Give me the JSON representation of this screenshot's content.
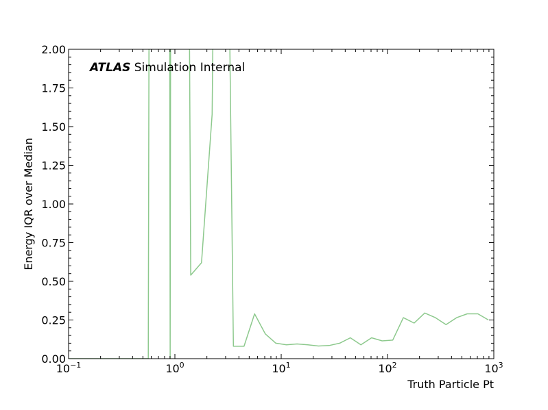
{
  "chart_data": {
    "type": "line",
    "xscale": "log",
    "xlim": [
      0.1,
      1000
    ],
    "ylim": [
      0,
      2.0
    ],
    "xlabel": "Truth Particle Pt",
    "ylabel": "Energy IQR over Median",
    "label_bold": "ATLAS",
    "label_rest": " Simulation Internal",
    "x_ticks": [
      {
        "base": "10",
        "exp": "−1",
        "value": 0.1
      },
      {
        "base": "10",
        "exp": "0",
        "value": 1
      },
      {
        "base": "10",
        "exp": "1",
        "value": 10
      },
      {
        "base": "10",
        "exp": "2",
        "value": 100
      },
      {
        "base": "10",
        "exp": "3",
        "value": 1000
      }
    ],
    "y_ticks": [
      "0.00",
      "0.25",
      "0.50",
      "0.75",
      "1.00",
      "1.25",
      "1.50",
      "1.75",
      "2.00"
    ],
    "series": [
      {
        "color": "#8dc98d",
        "x": [
          0.1,
          0.126,
          0.158,
          0.2,
          0.251,
          0.316,
          0.398,
          0.501,
          0.562,
          0.575,
          0.89,
          0.902,
          0.915,
          1.35,
          1.41,
          1.78,
          2.24,
          2.35,
          3.16,
          3.55,
          4.47,
          5.62,
          7.08,
          8.91,
          11.2,
          14.1,
          17.8,
          22.4,
          28.2,
          35.5,
          44.7,
          56.2,
          70.8,
          89.1,
          112,
          141,
          178,
          224,
          282,
          355,
          447,
          562,
          708,
          891
        ],
        "y": [
          0.0,
          0.0,
          0.0,
          0.0,
          0.0,
          0.0,
          0.0,
          0.0,
          0.0,
          3.0,
          3.0,
          0.0,
          3.0,
          3.0,
          0.54,
          0.62,
          1.58,
          3.0,
          3.0,
          0.08,
          0.08,
          0.29,
          0.16,
          0.1,
          0.09,
          0.095,
          0.09,
          0.082,
          0.085,
          0.1,
          0.135,
          0.09,
          0.135,
          0.115,
          0.12,
          0.265,
          0.23,
          0.295,
          0.265,
          0.22,
          0.265,
          0.29,
          0.29,
          0.25
        ]
      }
    ],
    "grid": false,
    "legend": "none"
  }
}
